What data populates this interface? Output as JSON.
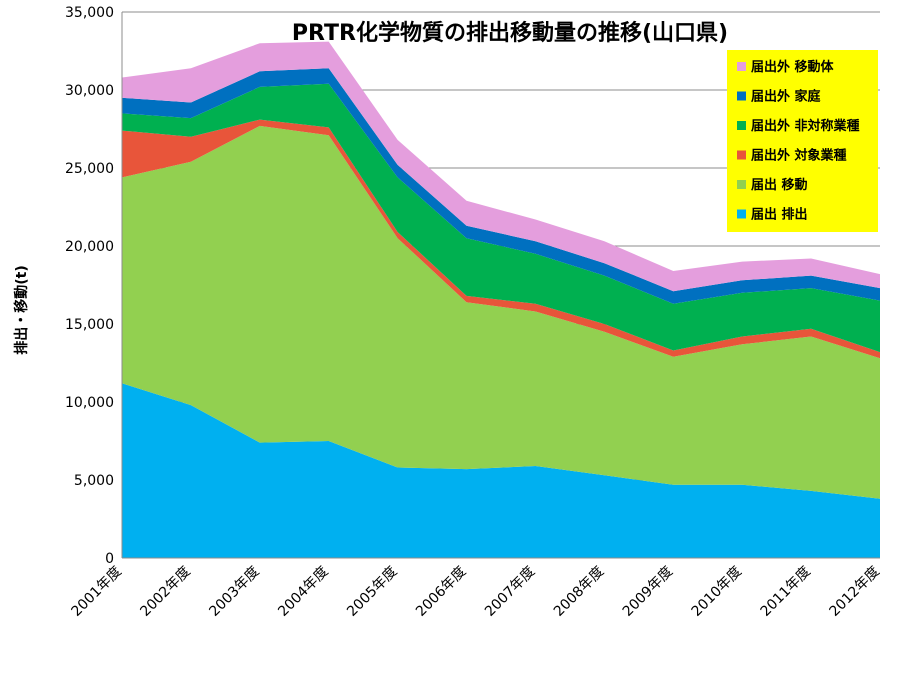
{
  "chart_data": {
    "type": "area",
    "stacked": true,
    "title": "PRTR化学物質の排出移動量の推移(山口県)",
    "ylabel": "排出・移動(t)",
    "xlabel": "",
    "ylim": [
      0,
      35000
    ],
    "yticks": [
      0,
      5000,
      10000,
      15000,
      20000,
      25000,
      30000,
      35000
    ],
    "ytick_labels": [
      "0",
      "5,000",
      "10,000",
      "15,000",
      "20,000",
      "25,000",
      "30,000",
      "35,000"
    ],
    "grid": true,
    "legend_position": "top-right",
    "categories": [
      "2001年度",
      "2002年度",
      "2003年度",
      "2004年度",
      "2005年度",
      "2006年度",
      "2007年度",
      "2008年度",
      "2009年度",
      "2010年度",
      "2011年度",
      "2012年度"
    ],
    "series": [
      {
        "name": "届出 排出",
        "color": "#00b0f0",
        "values": [
          11200,
          9800,
          7400,
          7500,
          5800,
          5700,
          5900,
          5300,
          4700,
          4700,
          4300,
          3800
        ]
      },
      {
        "name": "届出 移動",
        "color": "#92d050",
        "values": [
          13200,
          15600,
          20300,
          19600,
          14700,
          10700,
          9900,
          9200,
          8200,
          9000,
          9900,
          9000
        ]
      },
      {
        "name": "届出外 対象業種",
        "color": "#e8553a",
        "values": [
          3000,
          1600,
          400,
          500,
          400,
          400,
          500,
          500,
          400,
          500,
          500,
          400
        ]
      },
      {
        "name": "届出外 非対称業種",
        "color": "#00b050",
        "values": [
          1100,
          1200,
          2100,
          2800,
          3500,
          3700,
          3200,
          3100,
          3000,
          2800,
          2600,
          3300
        ]
      },
      {
        "name": "届出外 家庭",
        "color": "#0070c0",
        "values": [
          1000,
          1000,
          1000,
          1000,
          800,
          800,
          800,
          800,
          800,
          800,
          800,
          800
        ]
      },
      {
        "name": "届出外 移動体",
        "color": "#e49edd",
        "values": [
          1300,
          2200,
          1800,
          1700,
          1600,
          1600,
          1400,
          1400,
          1300,
          1200,
          1100,
          900
        ]
      }
    ],
    "legend_order": [
      "届出外 移動体",
      "届出外 家庭",
      "届出外 非対称業種",
      "届出外 対象業種",
      "届出 移動",
      "届出 排出"
    ],
    "legend_background": "#ffff00"
  }
}
